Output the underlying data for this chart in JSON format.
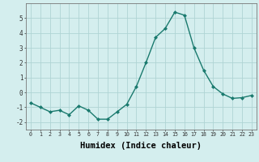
{
  "x": [
    0,
    1,
    2,
    3,
    4,
    5,
    6,
    7,
    8,
    9,
    10,
    11,
    12,
    13,
    14,
    15,
    16,
    17,
    18,
    19,
    20,
    21,
    22,
    23
  ],
  "y": [
    -0.7,
    -1.0,
    -1.3,
    -1.2,
    -1.5,
    -0.9,
    -1.2,
    -1.8,
    -1.8,
    -1.3,
    -0.8,
    0.4,
    2.0,
    3.7,
    4.3,
    5.4,
    5.2,
    3.0,
    1.5,
    0.4,
    -0.1,
    -0.4,
    -0.35,
    -0.2
  ],
  "line_color": "#1a7a6e",
  "marker": "D",
  "marker_size": 2.0,
  "linewidth": 1.0,
  "xlabel": "Humidex (Indice chaleur)",
  "xlim": [
    -0.5,
    23.5
  ],
  "ylim": [
    -2.5,
    6.0
  ],
  "yticks": [
    -2,
    -1,
    0,
    1,
    2,
    3,
    4,
    5
  ],
  "xticks": [
    0,
    1,
    2,
    3,
    4,
    5,
    6,
    7,
    8,
    9,
    10,
    11,
    12,
    13,
    14,
    15,
    16,
    17,
    18,
    19,
    20,
    21,
    22,
    23
  ],
  "bg_color": "#d4eeee",
  "grid_color": "#b0d4d4",
  "font_family": "monospace",
  "xlabel_fontsize": 7.5,
  "tick_fontsize_x": 4.8,
  "tick_fontsize_y": 5.5
}
